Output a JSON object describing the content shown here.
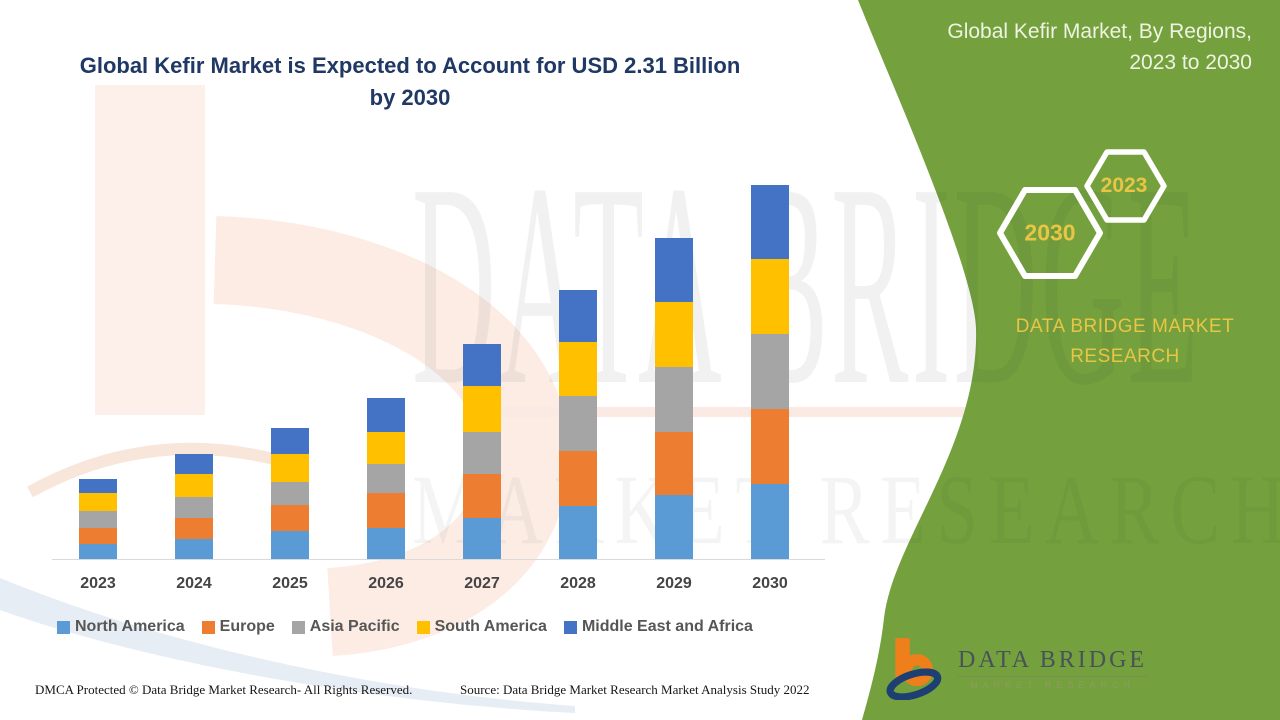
{
  "main_title": {
    "line1": "Global Kefir Market is Expected to Account for USD 2.31 Billion",
    "line2": "by 2030",
    "color": "#1f3864"
  },
  "chart_data": {
    "type": "bar",
    "stacked": true,
    "title": "Global Kefir Market is Expected to Account for USD 2.31 Billion by 2030",
    "unit": "USD Billion",
    "categories": [
      "2023",
      "2024",
      "2025",
      "2026",
      "2027",
      "2028",
      "2029",
      "2030"
    ],
    "series": [
      {
        "name": "North America",
        "color": "#5b9bd5",
        "values": [
          0.1,
          0.13,
          0.18,
          0.2,
          0.26,
          0.33,
          0.4,
          0.47
        ]
      },
      {
        "name": "Europe",
        "color": "#ed7d31",
        "values": [
          0.1,
          0.13,
          0.16,
          0.21,
          0.27,
          0.34,
          0.39,
          0.46
        ]
      },
      {
        "name": "Asia Pacific",
        "color": "#a5a5a5",
        "values": [
          0.1,
          0.13,
          0.14,
          0.18,
          0.26,
          0.34,
          0.4,
          0.46
        ]
      },
      {
        "name": "South America",
        "color": "#ffc000",
        "values": [
          0.11,
          0.14,
          0.17,
          0.2,
          0.28,
          0.33,
          0.4,
          0.46
        ]
      },
      {
        "name": "Middle East and Africa",
        "color": "#4472c4",
        "values": [
          0.09,
          0.12,
          0.16,
          0.21,
          0.26,
          0.32,
          0.39,
          0.46
        ]
      }
    ],
    "totals_by_year": [
      0.5,
      0.65,
      0.81,
      1.0,
      1.33,
      1.66,
      1.98,
      2.31
    ],
    "ylim": [
      0,
      2.5
    ],
    "grid": false,
    "axis_labels_shown": false,
    "legend_position": "bottom"
  },
  "side_panel": {
    "bg_color": "#74a13d",
    "title_line1": "Global Kefir Market, By Regions,",
    "title_line2": "2023 to 2030",
    "hexagons": [
      {
        "label": "2030"
      },
      {
        "label": "2023"
      }
    ],
    "accent_gold": "#e8c544",
    "brand_line1": "DATA BRIDGE MARKET",
    "brand_line2": "RESEARCH",
    "logo": {
      "name": "DATA BRIDGE",
      "subtext": "MARKET RESEARCH"
    }
  },
  "watermark": {
    "line1": "DATA BRIDGE",
    "line2": "MARKET RESEARCH"
  },
  "footer": {
    "dmca": "DMCA Protected © Data Bridge Market Research- All Rights Reserved.",
    "source": "Source: Data Bridge Market Research Market Analysis Study 2022"
  }
}
